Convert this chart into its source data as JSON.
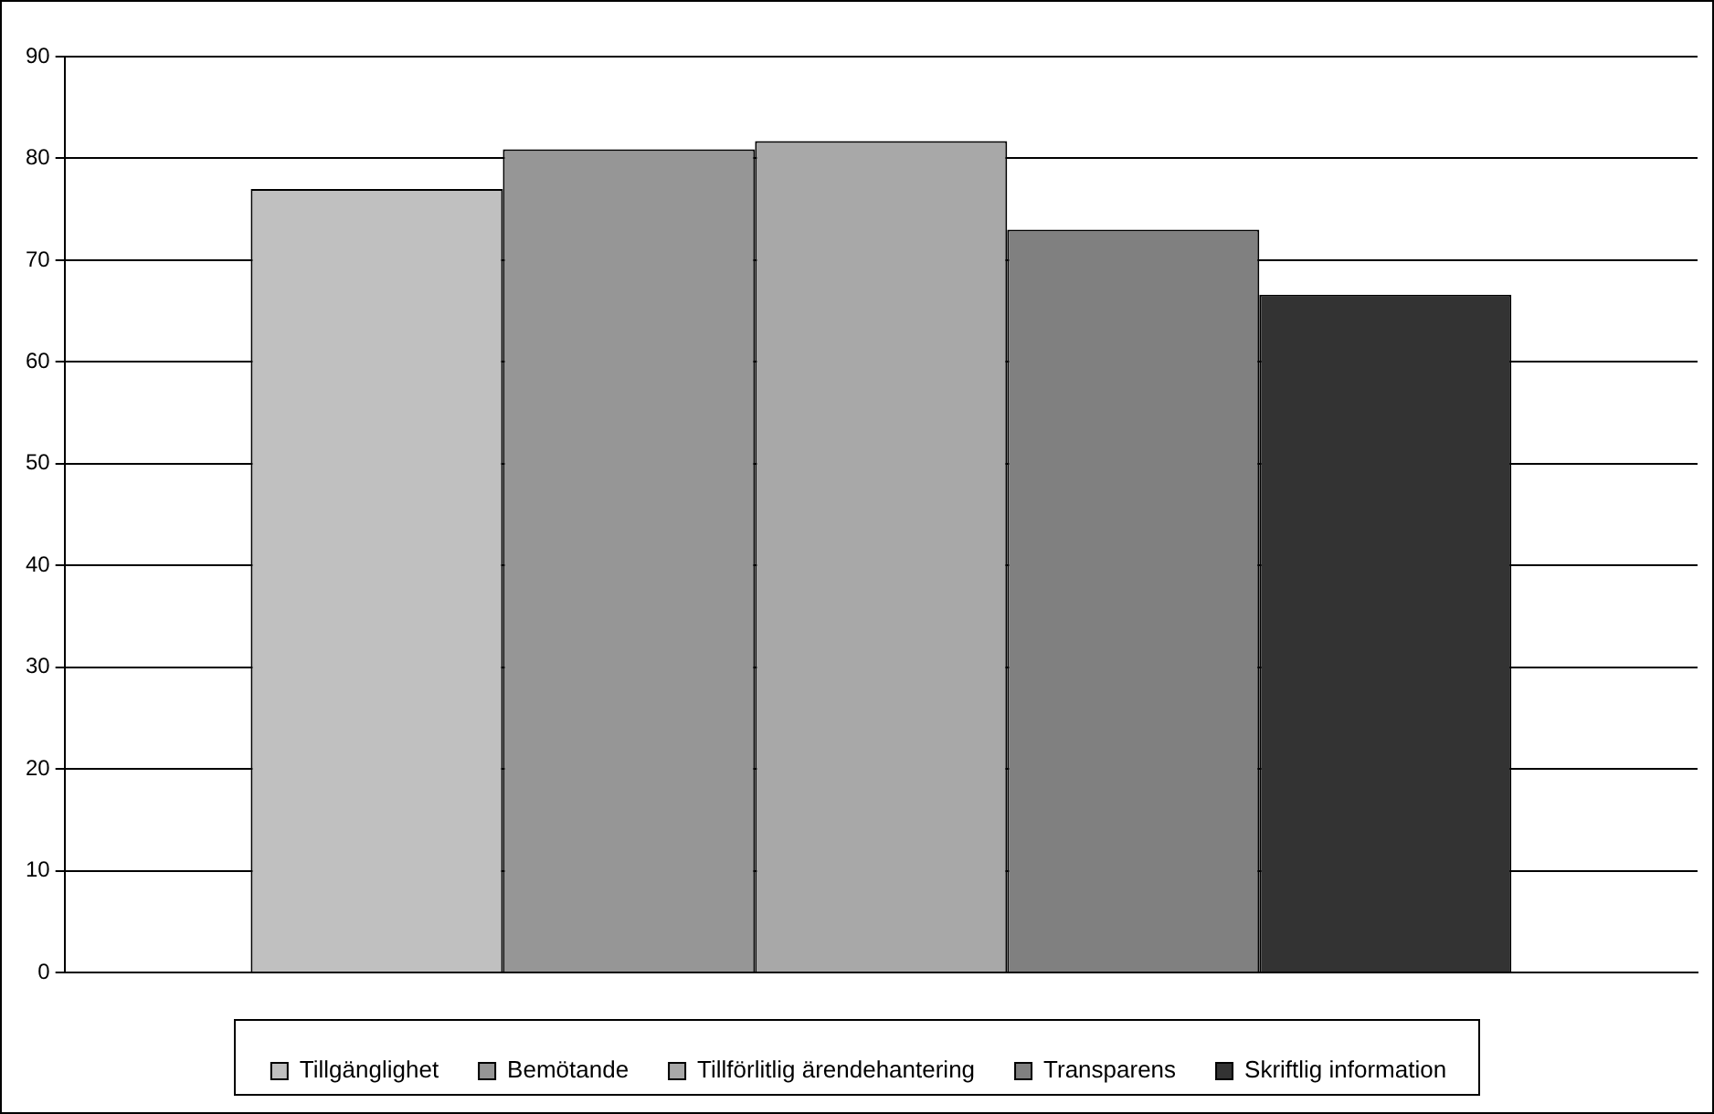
{
  "chart_data": {
    "type": "bar",
    "categories": [
      null
    ],
    "series": [
      {
        "name": "Tillgänglighet",
        "color": "#c0c0c0",
        "values": [
          77
        ]
      },
      {
        "name": "Bemötande",
        "color": "#969696",
        "values": [
          80.9
        ]
      },
      {
        "name": "Tillförlitlig ärendehantering",
        "color": "#a8a8a8",
        "values": [
          81.7
        ]
      },
      {
        "name": "Transparens",
        "color": "#808080",
        "values": [
          73
        ]
      },
      {
        "name": "Skriftlig information",
        "color": "#333333",
        "values": [
          66.6
        ]
      }
    ],
    "ylim": [
      0,
      90
    ],
    "yticks": [
      0,
      10,
      20,
      30,
      40,
      50,
      60,
      70,
      80,
      90
    ],
    "grid": "y",
    "legend": "bottom"
  }
}
